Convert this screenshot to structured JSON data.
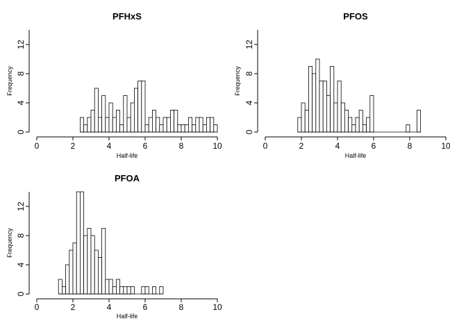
{
  "chart_data": [
    {
      "type": "bar",
      "title": "PFHxS",
      "xlabel": "Half-life",
      "ylabel": "Frequency",
      "xlim": [
        0,
        10
      ],
      "ylim": [
        0,
        14
      ],
      "xticks": [
        0,
        2,
        4,
        6,
        8,
        10
      ],
      "yticks": [
        0,
        4,
        8,
        12
      ],
      "bin_width": 0.2,
      "bins_start": [
        2.4,
        2.6,
        2.8,
        3.0,
        3.2,
        3.4,
        3.6,
        3.8,
        4.0,
        4.2,
        4.4,
        4.6,
        4.8,
        5.0,
        5.2,
        5.4,
        5.6,
        5.8,
        6.0,
        6.2,
        6.4,
        6.6,
        6.8,
        7.0,
        7.2,
        7.4,
        7.6,
        7.8,
        8.0,
        8.2,
        8.4,
        8.6,
        8.8,
        9.0,
        9.2,
        9.4,
        9.6,
        9.8
      ],
      "values": [
        2,
        1,
        2,
        3,
        6,
        2,
        5,
        2,
        4,
        2,
        3,
        1,
        5,
        2,
        4,
        6,
        7,
        7,
        1,
        2,
        3,
        2,
        1,
        2,
        2,
        3,
        3,
        1,
        1,
        1,
        2,
        1,
        2,
        2,
        1,
        2,
        2,
        1
      ]
    },
    {
      "type": "bar",
      "title": "PFOS",
      "xlabel": "Half-life",
      "ylabel": "Frequency",
      "xlim": [
        0,
        10
      ],
      "ylim": [
        0,
        14
      ],
      "xticks": [
        0,
        2,
        4,
        6,
        8,
        10
      ],
      "yticks": [
        0,
        4,
        8,
        12
      ],
      "bin_width": 0.2,
      "bins_start": [
        1.8,
        2.0,
        2.2,
        2.4,
        2.6,
        2.8,
        3.0,
        3.2,
        3.4,
        3.6,
        3.8,
        4.0,
        4.2,
        4.4,
        4.6,
        4.8,
        5.0,
        5.2,
        5.4,
        5.6,
        5.8,
        6.0,
        6.2,
        6.4,
        6.6,
        6.8,
        7.0,
        7.2,
        7.4,
        7.6,
        7.8,
        8.0,
        8.2,
        8.4
      ],
      "values": [
        2,
        4,
        3,
        9,
        8,
        10,
        7,
        7,
        5,
        9,
        4,
        7,
        4,
        3,
        2,
        1,
        2,
        3,
        1,
        2,
        5,
        0,
        0,
        0,
        0,
        0,
        0,
        0,
        0,
        0,
        1,
        0,
        0,
        3
      ]
    },
    {
      "type": "bar",
      "title": "PFOA",
      "xlabel": "Half-life",
      "ylabel": "Frequency",
      "xlim": [
        0,
        10
      ],
      "ylim": [
        0,
        14
      ],
      "xticks": [
        0,
        2,
        4,
        6,
        8,
        10
      ],
      "yticks": [
        0,
        4,
        8,
        12
      ],
      "bin_width": 0.2,
      "bins_start": [
        1.2,
        1.4,
        1.6,
        1.8,
        2.0,
        2.2,
        2.4,
        2.6,
        2.8,
        3.0,
        3.2,
        3.4,
        3.6,
        3.8,
        4.0,
        4.2,
        4.4,
        4.6,
        4.8,
        5.0,
        5.2,
        5.4,
        5.6,
        5.8,
        6.0,
        6.2,
        6.4,
        6.6,
        6.8
      ],
      "values": [
        2,
        1,
        4,
        6,
        7,
        14,
        14,
        8,
        9,
        8,
        6,
        5,
        9,
        2,
        2,
        1,
        2,
        1,
        1,
        1,
        1,
        0,
        0,
        1,
        1,
        0,
        1,
        0,
        1
      ]
    }
  ]
}
